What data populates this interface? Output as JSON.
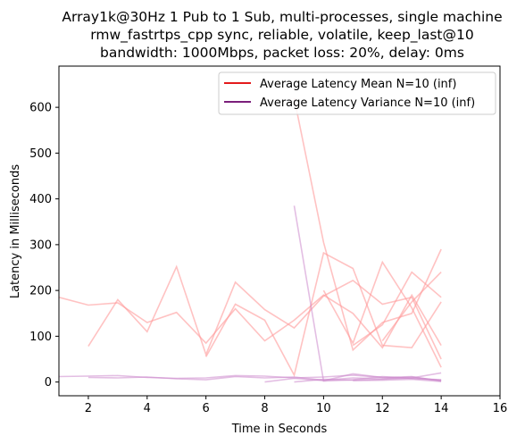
{
  "chart_data": {
    "type": "line",
    "title": [
      "Array1k@30Hz 1 Pub to 1 Sub, multi-processes, single machine",
      "rmw_fastrtps_cpp sync, reliable, volatile, keep_last@10",
      "bandwidth: 1000Mbps, packet loss: 20%, delay: 0ms"
    ],
    "xlabel": "Time in Seconds",
    "ylabel": "Latency in Milliseconds",
    "xlim": [
      1,
      16
    ],
    "ylim": [
      -30,
      690
    ],
    "xticks": [
      2,
      4,
      6,
      8,
      10,
      12,
      14,
      16
    ],
    "yticks": [
      0,
      100,
      200,
      300,
      400,
      500,
      600
    ],
    "grid": false,
    "legend_position": "top-right",
    "legend": [
      {
        "label": "Average Latency Mean N=10 (inf)",
        "color": "#e41a1c"
      },
      {
        "label": "Average Latency Variance N=10 (inf)",
        "color": "#7b1f7b"
      }
    ],
    "series": [
      {
        "group": "mean",
        "color": "#ff9999",
        "x": [
          1,
          2,
          3,
          4,
          5,
          6,
          7,
          8,
          9,
          10,
          11,
          12,
          13,
          14
        ],
        "y": [
          185,
          168,
          173,
          130,
          152,
          85,
          160,
          90,
          135,
          190,
          150,
          75,
          190,
          80
        ]
      },
      {
        "group": "mean",
        "color": "#ff9999",
        "x": [
          2,
          3,
          4,
          5,
          6,
          7,
          8,
          9,
          10,
          11,
          12,
          13,
          14
        ],
        "y": [
          78,
          180,
          110,
          252,
          60,
          218,
          158,
          118,
          188,
          222,
          170,
          185,
          50
        ]
      },
      {
        "group": "mean",
        "color": "#ff9999",
        "x": [
          6,
          7,
          8,
          9,
          10,
          11,
          12,
          13,
          14
        ],
        "y": [
          55,
          170,
          135,
          15,
          282,
          248,
          80,
          75,
          175
        ]
      },
      {
        "group": "mean",
        "color": "#ff9999",
        "x": [
          9,
          10,
          11,
          12,
          13,
          14
        ],
        "y": [
          620,
          305,
          70,
          130,
          150,
          290
        ]
      },
      {
        "group": "mean",
        "color": "#ff9999",
        "x": [
          10,
          11,
          12,
          13,
          14
        ],
        "y": [
          200,
          85,
          262,
          162,
          32
        ]
      },
      {
        "group": "mean",
        "color": "#ff9999",
        "x": [
          11,
          12,
          13,
          14
        ],
        "y": [
          80,
          125,
          240,
          185
        ]
      },
      {
        "group": "mean",
        "color": "#ff9999",
        "x": [
          12,
          13,
          14
        ],
        "y": [
          90,
          175,
          240
        ]
      },
      {
        "group": "variance",
        "color": "#cc88cc",
        "x": [
          1,
          2,
          3,
          4,
          5,
          6,
          7,
          8,
          9,
          10,
          11,
          12,
          13,
          14
        ],
        "y": [
          12,
          13,
          14,
          10,
          8,
          9,
          14,
          13,
          9,
          11,
          15,
          10,
          8,
          5
        ]
      },
      {
        "group": "variance",
        "color": "#cc88cc",
        "x": [
          2,
          3,
          4,
          5,
          6,
          7,
          8,
          9,
          10,
          11,
          12,
          13,
          14
        ],
        "y": [
          10,
          9,
          11,
          7,
          5,
          12,
          9,
          11,
          4,
          9,
          7,
          11,
          3
        ]
      },
      {
        "group": "variance",
        "color": "#cc88cc",
        "x": [
          8,
          9,
          10,
          11,
          12,
          13,
          14
        ],
        "y": [
          0,
          8,
          3,
          18,
          10,
          12,
          2
        ]
      },
      {
        "group": "variance",
        "color": "#cc88cc",
        "x": [
          9,
          10,
          11,
          12,
          13,
          14
        ],
        "y": [
          385,
          2,
          5,
          12,
          8,
          4
        ]
      },
      {
        "group": "variance",
        "color": "#cc88cc",
        "x": [
          9,
          10,
          11,
          12,
          13,
          14
        ],
        "y": [
          0,
          6,
          4,
          6,
          9,
          20
        ]
      },
      {
        "group": "variance",
        "color": "#cc88cc",
        "x": [
          11,
          12,
          13,
          14
        ],
        "y": [
          3,
          4,
          6,
          1
        ]
      }
    ]
  }
}
